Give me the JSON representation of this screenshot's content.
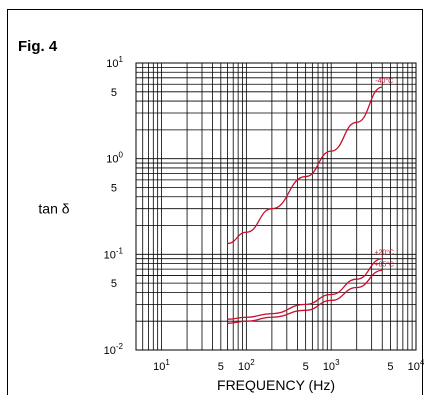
{
  "figure_label": "Fig. 4",
  "chart_data": {
    "type": "line",
    "xlabel": "FREQUENCY (Hz)",
    "ylabel": "tan δ",
    "x_scale": "log",
    "y_scale": "log",
    "xlim": [
      5,
      10000
    ],
    "ylim": [
      0.01,
      10
    ],
    "grid": true,
    "x_tick_labels": [
      {
        "value": 10,
        "base": "10",
        "exp": "1"
      },
      {
        "value": 50,
        "base": "5",
        "exp": ""
      },
      {
        "value": 100,
        "base": "10",
        "exp": "2"
      },
      {
        "value": 500,
        "base": "5",
        "exp": ""
      },
      {
        "value": 1000,
        "base": "10",
        "exp": "3"
      },
      {
        "value": 5000,
        "base": "5",
        "exp": ""
      },
      {
        "value": 10000,
        "base": "10",
        "exp": "4"
      }
    ],
    "y_tick_labels": [
      {
        "value": 10,
        "base": "10",
        "exp": "1"
      },
      {
        "value": 5,
        "base": "5",
        "exp": ""
      },
      {
        "value": 1,
        "base": "10",
        "exp": "0"
      },
      {
        "value": 0.5,
        "base": "5",
        "exp": ""
      },
      {
        "value": 0.1,
        "base": "10",
        "exp": "-1"
      },
      {
        "value": 0.05,
        "base": "5",
        "exp": ""
      },
      {
        "value": 0.01,
        "base": "10",
        "exp": "-2"
      }
    ],
    "series": [
      {
        "name": "-40°C",
        "color": "#c8102e",
        "x": [
          60,
          100,
          200,
          500,
          1000,
          2000,
          4000
        ],
        "y": [
          0.13,
          0.17,
          0.3,
          0.65,
          1.2,
          2.4,
          5.6
        ]
      },
      {
        "name": "+20°C",
        "color": "#c8102e",
        "x": [
          60,
          100,
          200,
          500,
          1000,
          2000,
          4000
        ],
        "y": [
          0.021,
          0.022,
          0.024,
          0.03,
          0.038,
          0.055,
          0.09
        ]
      },
      {
        "name": "+85°C",
        "color": "#c8102e",
        "x": [
          60,
          100,
          200,
          500,
          1000,
          2000,
          4000
        ],
        "y": [
          0.019,
          0.02,
          0.022,
          0.026,
          0.033,
          0.045,
          0.068
        ]
      }
    ]
  }
}
